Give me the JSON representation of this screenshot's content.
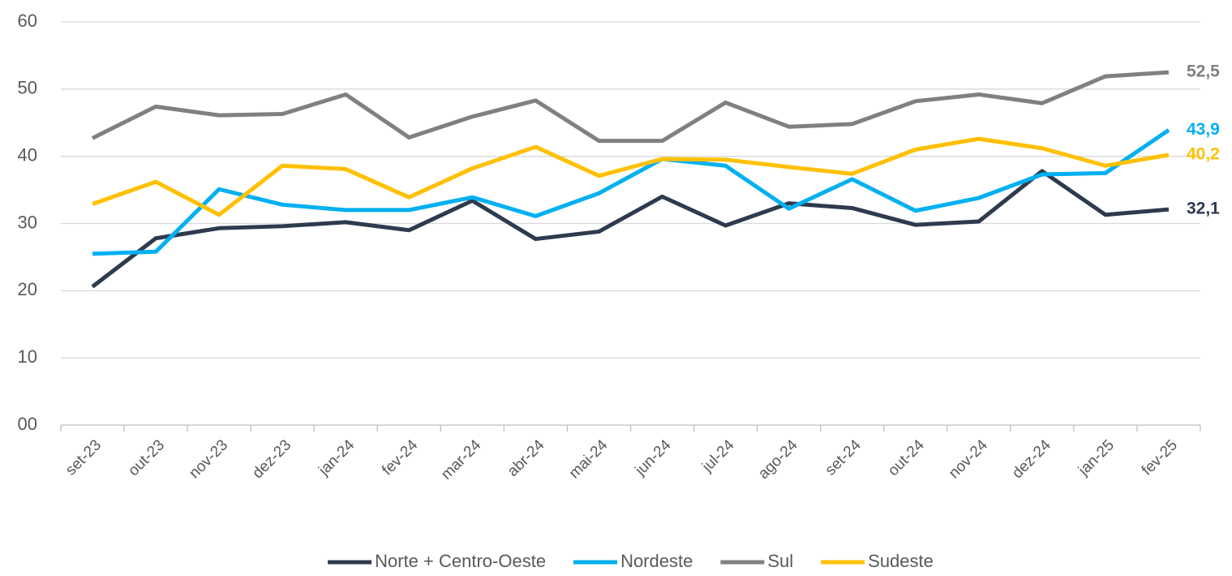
{
  "chart_data": {
    "type": "line",
    "categories": [
      "set-23",
      "out-23",
      "nov-23",
      "dez-23",
      "jan-24",
      "fev-24",
      "mar-24",
      "abr-24",
      "mai-24",
      "jun-24",
      "jul-24",
      "ago-24",
      "set-24",
      "out-24",
      "nov-24",
      "dez-24",
      "jan-25",
      "fev-25"
    ],
    "series": [
      {
        "name": "Norte + Centro-Oeste",
        "color": "#2e3a4e",
        "values": [
          20.6,
          27.8,
          29.3,
          29.6,
          30.2,
          29.0,
          33.4,
          27.7,
          28.8,
          34.0,
          29.7,
          33.0,
          32.3,
          29.8,
          30.3,
          37.8,
          31.3,
          32.1
        ],
        "value_labels": [
          null,
          null,
          null,
          null,
          null,
          null,
          null,
          null,
          null,
          null,
          null,
          null,
          null,
          null,
          null,
          null,
          null,
          "32,1"
        ]
      },
      {
        "name": "Nordeste",
        "color": "#00b0f0",
        "values": [
          25.5,
          25.8,
          35.1,
          32.8,
          32.0,
          32.0,
          33.9,
          31.1,
          34.5,
          39.6,
          38.6,
          32.2,
          36.6,
          31.9,
          33.8,
          37.3,
          37.5,
          43.9
        ],
        "value_labels": [
          null,
          null,
          null,
          null,
          null,
          null,
          null,
          null,
          null,
          null,
          null,
          null,
          null,
          null,
          null,
          null,
          null,
          "43,9"
        ]
      },
      {
        "name": "Sul",
        "color": "#808080",
        "values": [
          42.7,
          47.4,
          46.1,
          46.3,
          49.2,
          42.8,
          45.9,
          48.3,
          42.3,
          42.3,
          48.0,
          44.4,
          44.8,
          48.2,
          49.2,
          47.9,
          51.9,
          52.5
        ],
        "value_labels": [
          null,
          null,
          null,
          null,
          null,
          null,
          null,
          null,
          null,
          null,
          null,
          null,
          null,
          null,
          null,
          null,
          null,
          "52,5"
        ]
      },
      {
        "name": "Sudeste",
        "color": "#ffc000",
        "values": [
          32.9,
          36.2,
          31.3,
          38.6,
          38.1,
          33.9,
          38.2,
          41.4,
          37.1,
          39.6,
          39.5,
          38.4,
          37.4,
          41.0,
          42.6,
          41.2,
          38.6,
          40.2
        ],
        "value_labels": [
          null,
          null,
          null,
          null,
          null,
          null,
          null,
          null,
          null,
          null,
          null,
          null,
          null,
          null,
          null,
          null,
          null,
          "40,2"
        ]
      }
    ],
    "ylim": [
      0,
      60
    ],
    "yticks": [
      {
        "value": 0,
        "label": "00"
      },
      10,
      20,
      30,
      40,
      50,
      60
    ],
    "grid": true,
    "legend": "bottom"
  }
}
